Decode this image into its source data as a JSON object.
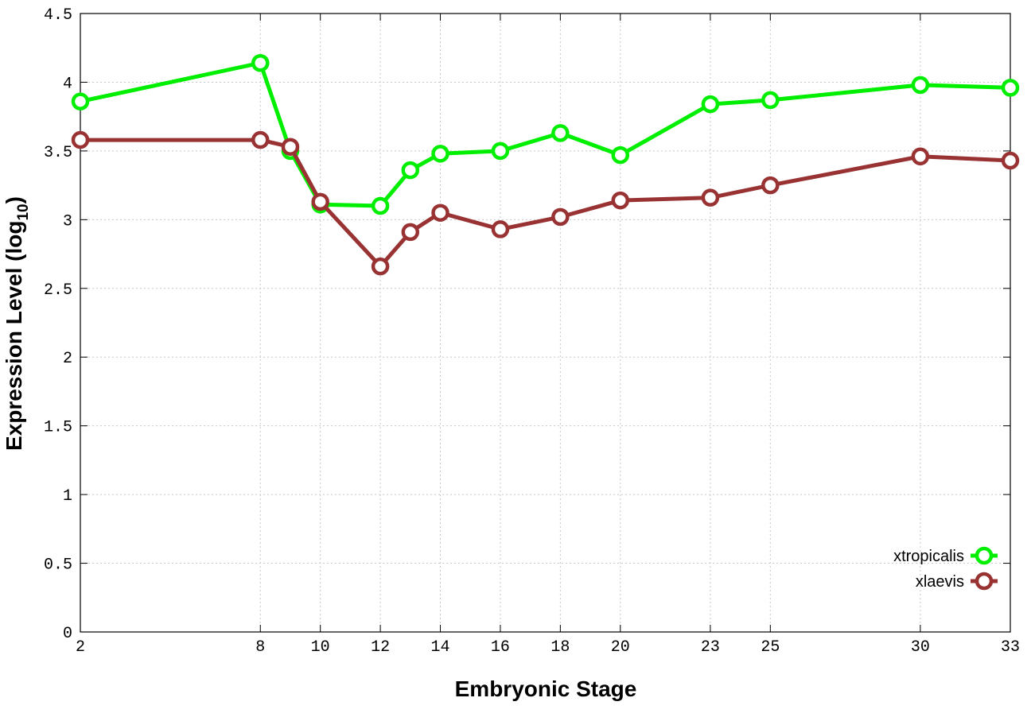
{
  "chart_data": {
    "type": "line",
    "xlabel": "Embryonic Stage",
    "ylabel": "Expression Level (log",
    "ylabel_sub": "10",
    "ylabel_close": ")",
    "xlim": [
      2,
      33
    ],
    "ylim": [
      0,
      4.5
    ],
    "x_ticks": [
      2,
      8,
      10,
      12,
      14,
      16,
      18,
      20,
      23,
      25,
      30,
      33
    ],
    "y_ticks": [
      0,
      0.5,
      1,
      1.5,
      2,
      2.5,
      3,
      3.5,
      4,
      4.5
    ],
    "y_tick_labels": [
      "0",
      "0.5",
      "1",
      "1.5",
      "2",
      "2.5",
      "3",
      "3.5",
      "4",
      "4.5"
    ],
    "grid": true,
    "legend_position": "bottom-right",
    "series": [
      {
        "name": "xtropicalis",
        "color": "#00ee00",
        "x": [
          2,
          8,
          9,
          10,
          12,
          13,
          14,
          16,
          18,
          20,
          23,
          25,
          30,
          33
        ],
        "y": [
          3.86,
          4.14,
          3.5,
          3.11,
          3.1,
          3.36,
          3.48,
          3.5,
          3.63,
          3.47,
          3.84,
          3.87,
          3.98,
          3.96
        ]
      },
      {
        "name": "xlaevis",
        "color": "#993333",
        "x": [
          2,
          8,
          9,
          10,
          12,
          13,
          14,
          16,
          18,
          20,
          23,
          25,
          30,
          33
        ],
        "y": [
          3.58,
          3.58,
          3.53,
          3.13,
          2.66,
          2.91,
          3.05,
          2.93,
          3.02,
          3.14,
          3.16,
          3.25,
          3.46,
          3.43
        ]
      }
    ]
  }
}
